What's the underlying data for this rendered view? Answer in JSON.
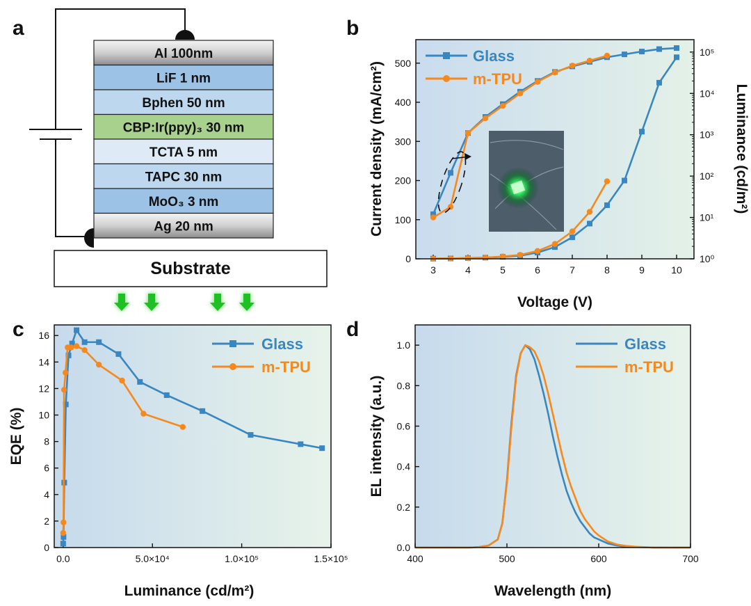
{
  "colors": {
    "glass": "#3a86c0",
    "mtpu": "#f5891e"
  },
  "panel_labels": {
    "a": "a",
    "b": "b",
    "c": "c",
    "d": "d"
  },
  "device": {
    "layers": [
      {
        "label": "Al 100nm",
        "fill": "#d9d9d9"
      },
      {
        "label": "LiF 1 nm",
        "fill": "#9cc2e5"
      },
      {
        "label": "Bphen 50 nm",
        "fill": "#bdd7ee"
      },
      {
        "label": "CBP:Ir(ppy)₃ 30 nm",
        "fill": "#a9d18e"
      },
      {
        "label": "TCTA 5 nm",
        "fill": "#deebf7"
      },
      {
        "label": "TAPC 30 nm",
        "fill": "#bdd7ee"
      },
      {
        "label": "MoO₃ 3 nm",
        "fill": "#9cc2e5"
      },
      {
        "label": "Ag 20 nm",
        "fill": "#d9d9d9"
      }
    ],
    "substrate": "Substrate"
  },
  "chart_data": [
    {
      "panel": "b",
      "type": "line",
      "xlabel": "Voltage (V)",
      "ylabel": "Current density (mA/cm²)",
      "y2label": "Luminance (cd/m²)",
      "xlim": [
        2.5,
        10.5
      ],
      "ylim": [
        0,
        560
      ],
      "y2lim_log10": [
        0,
        5.3
      ],
      "x_ticks": [
        3,
        4,
        5,
        6,
        7,
        8,
        9,
        10
      ],
      "y_ticks": [
        0,
        100,
        200,
        300,
        400,
        500
      ],
      "y2_ticks": [
        "10⁰",
        "10¹",
        "10²",
        "10³",
        "10⁴",
        "10⁵"
      ],
      "y2_scale": "log",
      "legend": [
        "Glass",
        "m-TPU"
      ],
      "legend_position": "top-left",
      "series": [
        {
          "name": "Glass",
          "axis": "left",
          "x": [
            3,
            3.5,
            4,
            4.5,
            5,
            5.5,
            6,
            6.5,
            7,
            7.5,
            8,
            8.5,
            9,
            9.5,
            10
          ],
          "values": [
            0.5,
            1,
            2,
            3,
            5,
            8,
            16,
            30,
            55,
            90,
            137,
            200,
            325,
            450,
            515
          ]
        },
        {
          "name": "m-TPU",
          "axis": "left",
          "x": [
            3,
            3.5,
            4,
            4.5,
            5,
            5.5,
            6,
            6.5,
            7,
            7.5,
            8
          ],
          "values": [
            0.5,
            1,
            2,
            3,
            6,
            10,
            20,
            38,
            70,
            120,
            198
          ]
        },
        {
          "name": "Glass",
          "axis": "right",
          "x": [
            3,
            3.5,
            4,
            4.5,
            5,
            5.5,
            6,
            6.5,
            7,
            7.5,
            8,
            8.5,
            9,
            9.5,
            10
          ],
          "values": [
            12,
            120,
            1100,
            2700,
            5500,
            11000,
            20000,
            33000,
            45000,
            58000,
            75000,
            88000,
            103000,
            118000,
            125000
          ]
        },
        {
          "name": "m-TPU",
          "axis": "right",
          "x": [
            3,
            3.5,
            4,
            4.5,
            5,
            5.5,
            6,
            6.5,
            7,
            7.5,
            8
          ],
          "values": [
            10,
            18,
            1100,
            2500,
            5000,
            10000,
            19000,
            32000,
            47000,
            62000,
            82000
          ]
        }
      ]
    },
    {
      "panel": "c",
      "type": "line",
      "xlabel": "Luminance (cd/m²)",
      "ylabel": "EQE (%)",
      "xlim": [
        -5000,
        150000
      ],
      "ylim": [
        0,
        16.8
      ],
      "x_ticks": [
        "0.0",
        "5.0×10⁴",
        "1.0×10⁵",
        "1.5×10⁵"
      ],
      "x_tick_values": [
        0,
        50000,
        100000,
        150000
      ],
      "y_ticks": [
        0,
        2,
        4,
        6,
        8,
        10,
        12,
        14,
        16
      ],
      "legend": [
        "Glass",
        "m-TPU"
      ],
      "legend_position": "top-right",
      "series": [
        {
          "name": "Glass",
          "x": [
            0,
            200,
            600,
            1500,
            3000,
            5000,
            7500,
            12000,
            20000,
            31000,
            43000,
            58000,
            78000,
            105000,
            133000,
            145000
          ],
          "values": [
            0.3,
            0.8,
            4.9,
            10.8,
            14.5,
            15.4,
            16.4,
            15.5,
            15.5,
            14.6,
            12.5,
            11.5,
            10.3,
            8.5,
            7.8,
            7.5
          ]
        },
        {
          "name": "m-TPU",
          "x": [
            0,
            200,
            500,
            1300,
            2500,
            4500,
            7500,
            12000,
            20000,
            33000,
            45000,
            67000
          ],
          "values": [
            1.1,
            1.9,
            11.9,
            13.2,
            15.1,
            15.1,
            15.2,
            14.9,
            13.8,
            12.6,
            10.1,
            9.1
          ]
        }
      ]
    },
    {
      "panel": "d",
      "type": "line",
      "xlabel": "Wavelength (nm)",
      "ylabel": "EL intensity (a.u.)",
      "xlim": [
        400,
        700
      ],
      "ylim": [
        0,
        1.1
      ],
      "x_ticks": [
        400,
        500,
        600,
        700
      ],
      "y_ticks": [
        "0.0",
        "0.2",
        "0.4",
        "0.6",
        "0.8",
        "1.0"
      ],
      "legend": [
        "Glass",
        "m-TPU"
      ],
      "legend_position": "top-right",
      "series": [
        {
          "name": "Glass",
          "x": [
            400,
            460,
            470,
            480,
            490,
            495,
            500,
            505,
            510,
            515,
            520,
            525,
            530,
            535,
            540,
            545,
            550,
            555,
            560,
            565,
            570,
            575,
            580,
            585,
            590,
            595,
            600,
            610,
            620,
            630,
            640,
            660,
            700
          ],
          "values": [
            0,
            0,
            0.003,
            0.01,
            0.04,
            0.12,
            0.33,
            0.62,
            0.85,
            0.96,
            1.0,
            0.98,
            0.93,
            0.85,
            0.76,
            0.66,
            0.55,
            0.45,
            0.36,
            0.28,
            0.22,
            0.17,
            0.13,
            0.1,
            0.07,
            0.05,
            0.04,
            0.02,
            0.01,
            0.005,
            0.003,
            0,
            0
          ]
        },
        {
          "name": "m-TPU",
          "x": [
            400,
            460,
            470,
            480,
            490,
            495,
            500,
            505,
            510,
            515,
            520,
            525,
            530,
            535,
            540,
            545,
            550,
            555,
            560,
            565,
            570,
            575,
            580,
            585,
            590,
            595,
            600,
            610,
            620,
            630,
            640,
            660,
            700
          ],
          "values": [
            0,
            0,
            0.003,
            0.01,
            0.04,
            0.12,
            0.32,
            0.6,
            0.84,
            0.96,
            1.0,
            0.99,
            0.97,
            0.92,
            0.85,
            0.76,
            0.66,
            0.56,
            0.46,
            0.37,
            0.3,
            0.24,
            0.18,
            0.14,
            0.11,
            0.08,
            0.06,
            0.03,
            0.015,
            0.008,
            0.004,
            0,
            0
          ]
        }
      ]
    }
  ]
}
